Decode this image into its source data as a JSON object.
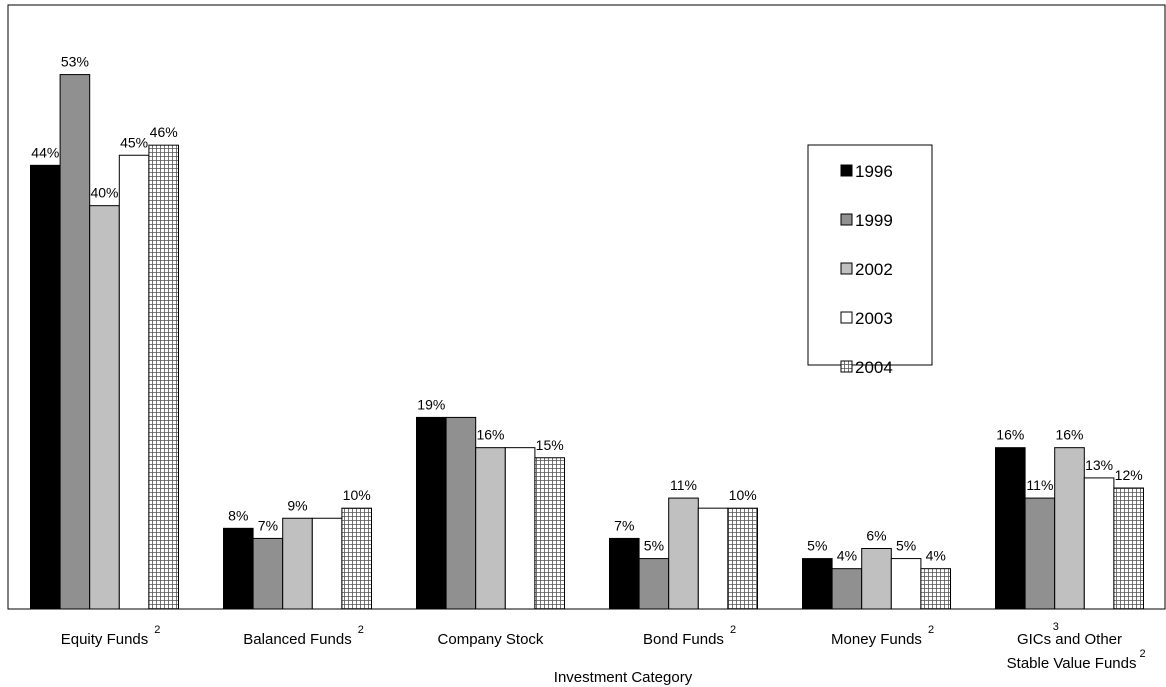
{
  "chart_data": {
    "type": "bar",
    "x_label": "Investment Category",
    "categories": [
      "Equity Funds",
      "Balanced Funds",
      "Company Stock",
      "Bond Funds",
      "Money Funds",
      "GICs and Other Stable Value Funds"
    ],
    "category_footnotes": [
      [
        "2"
      ],
      [
        "2"
      ],
      [],
      [
        "2"
      ],
      [
        "2"
      ],
      [
        "3",
        "2"
      ]
    ],
    "series": [
      {
        "name": "1996",
        "color": "#000000",
        "values": [
          44,
          8,
          19,
          7,
          5,
          16
        ],
        "value_labels": [
          "44%",
          "8%",
          "19%",
          "7%",
          "5%",
          "16%"
        ]
      },
      {
        "name": "1999",
        "color": "#909090",
        "values": [
          53,
          7,
          19,
          5,
          4,
          11
        ],
        "value_labels": [
          "53%",
          "7%",
          null,
          "5%",
          "4%",
          "11%"
        ]
      },
      {
        "name": "2002",
        "color": "#c0c0c0",
        "values": [
          40,
          9,
          16,
          11,
          6,
          16
        ],
        "value_labels": [
          "40%",
          "9%",
          "16%",
          "11%",
          "6%",
          "16%"
        ]
      },
      {
        "name": "2003",
        "color": "#ffffff",
        "values": [
          45,
          9,
          16,
          10,
          5,
          13
        ],
        "value_labels": [
          "45%",
          null,
          null,
          null,
          "5%",
          "13%"
        ]
      },
      {
        "name": "2004",
        "color": "#ffffff",
        "hatch": "grid",
        "values": [
          46,
          10,
          15,
          10,
          4,
          12
        ],
        "value_labels": [
          "46%",
          "10%",
          "15%",
          "10%",
          "4%",
          "12%"
        ]
      }
    ],
    "ylim": [
      0,
      60
    ],
    "legend": "upper right"
  }
}
